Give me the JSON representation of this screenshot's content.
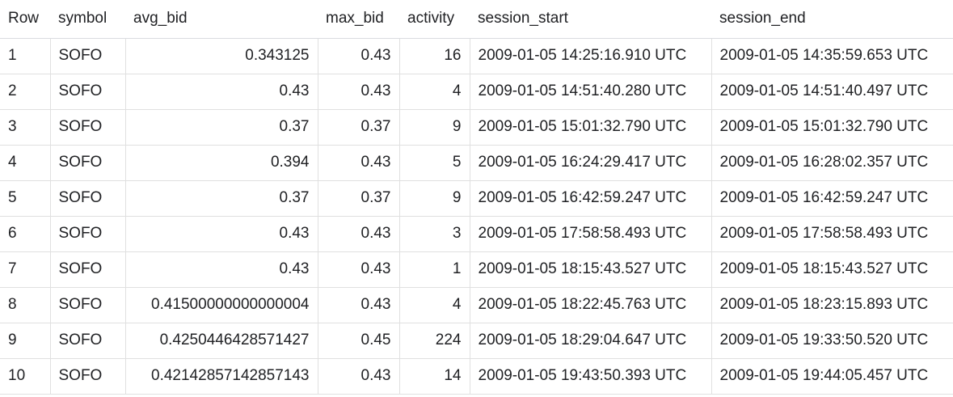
{
  "table": {
    "headers": [
      "Row",
      "symbol",
      "avg_bid",
      "max_bid",
      "activity",
      "session_start",
      "session_end"
    ],
    "rows": [
      {
        "row": "1",
        "symbol": "SOFO",
        "avg_bid": "0.343125",
        "max_bid": "0.43",
        "activity": "16",
        "session_start": "2009-01-05 14:25:16.910 UTC",
        "session_end": "2009-01-05 14:35:59.653 UTC"
      },
      {
        "row": "2",
        "symbol": "SOFO",
        "avg_bid": "0.43",
        "max_bid": "0.43",
        "activity": "4",
        "session_start": "2009-01-05 14:51:40.280 UTC",
        "session_end": "2009-01-05 14:51:40.497 UTC"
      },
      {
        "row": "3",
        "symbol": "SOFO",
        "avg_bid": "0.37",
        "max_bid": "0.37",
        "activity": "9",
        "session_start": "2009-01-05 15:01:32.790 UTC",
        "session_end": "2009-01-05 15:01:32.790 UTC"
      },
      {
        "row": "4",
        "symbol": "SOFO",
        "avg_bid": "0.394",
        "max_bid": "0.43",
        "activity": "5",
        "session_start": "2009-01-05 16:24:29.417 UTC",
        "session_end": "2009-01-05 16:28:02.357 UTC"
      },
      {
        "row": "5",
        "symbol": "SOFO",
        "avg_bid": "0.37",
        "max_bid": "0.37",
        "activity": "9",
        "session_start": "2009-01-05 16:42:59.247 UTC",
        "session_end": "2009-01-05 16:42:59.247 UTC"
      },
      {
        "row": "6",
        "symbol": "SOFO",
        "avg_bid": "0.43",
        "max_bid": "0.43",
        "activity": "3",
        "session_start": "2009-01-05 17:58:58.493 UTC",
        "session_end": "2009-01-05 17:58:58.493 UTC"
      },
      {
        "row": "7",
        "symbol": "SOFO",
        "avg_bid": "0.43",
        "max_bid": "0.43",
        "activity": "1",
        "session_start": "2009-01-05 18:15:43.527 UTC",
        "session_end": "2009-01-05 18:15:43.527 UTC"
      },
      {
        "row": "8",
        "symbol": "SOFO",
        "avg_bid": "0.41500000000000004",
        "max_bid": "0.43",
        "activity": "4",
        "session_start": "2009-01-05 18:22:45.763 UTC",
        "session_end": "2009-01-05 18:23:15.893 UTC"
      },
      {
        "row": "9",
        "symbol": "SOFO",
        "avg_bid": "0.4250446428571427",
        "max_bid": "0.45",
        "activity": "224",
        "session_start": "2009-01-05 18:29:04.647 UTC",
        "session_end": "2009-01-05 19:33:50.520 UTC"
      },
      {
        "row": "10",
        "symbol": "SOFO",
        "avg_bid": "0.42142857142857143",
        "max_bid": "0.43",
        "activity": "14",
        "session_start": "2009-01-05 19:43:50.393 UTC",
        "session_end": "2009-01-05 19:44:05.457 UTC"
      }
    ]
  }
}
